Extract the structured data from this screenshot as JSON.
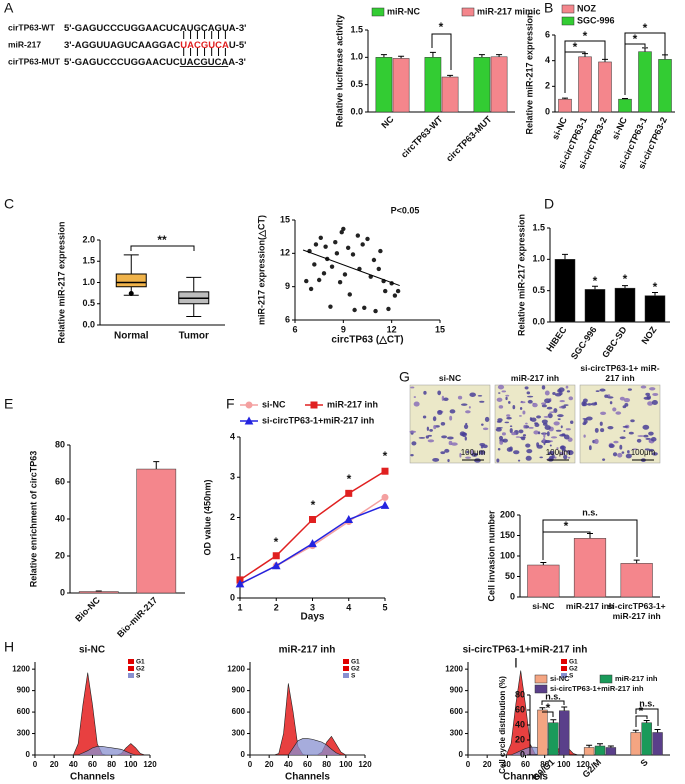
{
  "panels": [
    "A",
    "B",
    "C",
    "D",
    "E",
    "F",
    "G",
    "H",
    "I"
  ],
  "sequences": [
    {
      "name": "cirTP63-WT",
      "parts": [
        "5'-GAGUCCCUGGAACUCAUGCAGUA-3'"
      ]
    },
    {
      "name": "miR-217",
      "parts": [
        "3'-AGGUUAGUCAAGGAC",
        "UACGUCA",
        "U-5'"
      ]
    },
    {
      "name": "cirTP63-MUT",
      "parts": [
        "5'-GAGUCCCUGGAACUC",
        "UACGUCA",
        "A-3'"
      ]
    }
  ],
  "images": {
    "labels": [
      "si-NC",
      "miR-217 inh",
      "si-circTP63-1+ miR-217 inh"
    ],
    "scale_bar": "100μm"
  },
  "chart_data": [
    {
      "type": "bar",
      "categories": [
        "NC",
        "circTP63-WT",
        "circTP63-MUT"
      ],
      "series": [
        {
          "name": "miR-NC",
          "color": "#33cc33",
          "values": [
            1.0,
            1.0,
            1.0
          ],
          "errors": [
            0.05,
            0.09,
            0.05
          ]
        },
        {
          "name": "miR-217 mimic",
          "color": "#f4868c",
          "values": [
            0.98,
            0.64,
            1.01
          ],
          "errors": [
            0.04,
            0.03,
            0.04
          ]
        }
      ],
      "y_label": "Relative  luciferase activity",
      "ylim": [
        0,
        1.5
      ],
      "yticks": [
        {
          "value": 0,
          "label": "0.0"
        },
        0.5,
        {
          "value": 1,
          "label": "1.0"
        },
        1.5
      ],
      "annotations": [
        "*"
      ]
    },
    {
      "type": "bar",
      "categories": [
        "si-NC",
        "si-circTP63-1",
        "si-circTP63-2",
        "si-NC",
        "si-circTP63-1",
        "si-circTP63-2"
      ],
      "series": [
        {
          "name": "NOZ",
          "color": "#f4868c",
          "values": [
            1.0,
            4.3,
            3.9,
            null,
            null,
            null
          ],
          "errors": [
            0.08,
            0.25,
            0.2,
            null,
            null,
            null
          ]
        },
        {
          "name": "SGC-996",
          "color": "#33cc33",
          "values": [
            null,
            null,
            null,
            1.0,
            4.7,
            4.1
          ],
          "errors": [
            null,
            null,
            null,
            0.05,
            0.3,
            0.35
          ]
        }
      ],
      "y_label": "Relative miR-217 expression",
      "ylim": [
        0,
        6
      ],
      "yticks": [
        0,
        2,
        4,
        6
      ],
      "annotations": [
        "*",
        "*",
        "*",
        "*"
      ]
    },
    {
      "type": "box",
      "categories": [
        "Normal",
        "Tumor"
      ],
      "colors": [
        "#f0b34a",
        "#bdbdbd"
      ],
      "boxes": [
        {
          "min": 0.7,
          "q1": 0.9,
          "median": 1.0,
          "q3": 1.2,
          "max": 1.65,
          "outliers": [
            0.74
          ]
        },
        {
          "min": 0.2,
          "q1": 0.5,
          "median": 0.63,
          "q3": 0.78,
          "max": 1.12
        }
      ],
      "y_label": "Relative miR-217 expression",
      "ylim": [
        0,
        2
      ],
      "yticks": [
        {
          "value": 0,
          "label": "0.0"
        },
        0.5,
        {
          "value": 1,
          "label": "1.0"
        },
        1.5,
        {
          "value": 2,
          "label": "2.0"
        }
      ],
      "annotations": [
        "**"
      ]
    },
    {
      "type": "scatter",
      "x": [
        6.7,
        6.9,
        7.0,
        7.2,
        7.3,
        7.5,
        7.6,
        7.8,
        7.9,
        8.0,
        8.2,
        8.3,
        8.5,
        8.6,
        8.8,
        8.9,
        9.0,
        9.1,
        9.3,
        9.4,
        9.6,
        9.7,
        9.9,
        10.0,
        10.2,
        10.3,
        10.5,
        10.7,
        10.9,
        11.0,
        11.2,
        11.3,
        11.5,
        11.6,
        11.8,
        12.0,
        12.2,
        12.4
      ],
      "y": [
        9.5,
        12.2,
        8.8,
        11.0,
        12.8,
        9.6,
        13.4,
        10.2,
        12.6,
        11.5,
        7.2,
        10.8,
        13.0,
        12.0,
        9.4,
        13.9,
        14.2,
        10.1,
        12.5,
        8.3,
        11.9,
        6.9,
        13.6,
        10.6,
        12.8,
        7.1,
        13.3,
        9.9,
        11.4,
        6.8,
        10.6,
        12.2,
        9.5,
        8.6,
        7.0,
        9.3,
        8.2,
        8.6
      ],
      "color": "#222222",
      "trendline": {
        "x": [
          6.5,
          12.5
        ],
        "y": [
          12.3,
          9.1
        ]
      },
      "x_label": "circTP63 (△CT)",
      "y_label": "miR-217 expression(△CT)",
      "xlim": [
        6,
        15
      ],
      "xticks": [
        6,
        9,
        12,
        15
      ],
      "ylim": [
        6,
        15
      ],
      "yticks": [
        6,
        9,
        12,
        15
      ],
      "annotations": [
        "P<0.05"
      ]
    },
    {
      "type": "bar",
      "categories": [
        "HIBEC",
        "SGC-996",
        "GBC-SD",
        "NOZ"
      ],
      "color": "#000000",
      "values": [
        1.0,
        0.52,
        0.54,
        0.42
      ],
      "errors": [
        0.08,
        0.05,
        0.04,
        0.05
      ],
      "y_label": "Relative miR-217 expression",
      "ylim": [
        0,
        1.5
      ],
      "yticks": [
        {
          "value": 0,
          "label": "0.0"
        },
        0.5,
        {
          "value": 1,
          "label": "1.0"
        },
        1.5
      ],
      "annotations": [
        "*",
        "*",
        "*"
      ]
    },
    {
      "type": "bar",
      "categories": [
        "Bio-NC",
        "Bio-miR-217"
      ],
      "color": "#f4868c",
      "values": [
        0.8,
        67
      ],
      "errors": [
        0.3,
        4
      ],
      "y_label": "Relative enrichment of circTP63",
      "ylim": [
        0,
        80
      ],
      "yticks": [
        0,
        20,
        40,
        60,
        80
      ]
    },
    {
      "type": "line",
      "x": [
        1,
        2,
        3,
        4,
        5
      ],
      "series": [
        {
          "name": "si-NC",
          "color": "#f4a0a0",
          "values": [
            0.35,
            0.8,
            1.3,
            1.9,
            2.5
          ]
        },
        {
          "name": "miR-217 inh",
          "color": "#e02020",
          "values": [
            0.45,
            1.05,
            1.95,
            2.6,
            3.15
          ]
        },
        {
          "name": "si-circTP63-1+miR-217 inh",
          "color": "#2424e0",
          "values": [
            0.35,
            0.8,
            1.35,
            1.95,
            2.3
          ]
        }
      ],
      "x_label": "Days",
      "y_label": "OD value (450nm)",
      "xlim": [
        1,
        5
      ],
      "xticks": [
        1,
        2,
        3,
        4,
        5
      ],
      "ylim": [
        0,
        4
      ],
      "yticks": [
        0,
        1,
        2,
        3,
        4
      ],
      "annotations": [
        "*",
        "*",
        "*",
        "*"
      ]
    },
    {
      "type": "bar",
      "categories": [
        "si-NC",
        "miR-217 inh",
        "si-circTP63-1+ miR-217 inh"
      ],
      "color": "#f4868c",
      "values": [
        78,
        143,
        82
      ],
      "errors": [
        6,
        12,
        8
      ],
      "y_label": "Cell invasion number",
      "ylim": [
        0,
        200
      ],
      "yticks": [
        0,
        50,
        100,
        150,
        200
      ],
      "annotations": [
        "*",
        "n.s."
      ]
    },
    {
      "type": "area",
      "title": "si-NC",
      "x": [
        0,
        5,
        10,
        15,
        20,
        25,
        30,
        35,
        40,
        45,
        50,
        55,
        60,
        65,
        70,
        75,
        80,
        85,
        90,
        95,
        100,
        105,
        110,
        115,
        120
      ],
      "series": [
        {
          "name": "G1",
          "color": "#e00000",
          "values": [
            0,
            0,
            0,
            0,
            0,
            0,
            0,
            0,
            0,
            155,
            700,
            1150,
            700,
            155,
            15,
            0,
            0,
            0,
            0,
            0,
            0,
            0,
            0,
            0,
            0
          ]
        },
        {
          "name": "G2",
          "color": "#e00000",
          "values": [
            0,
            0,
            0,
            0,
            0,
            0,
            0,
            0,
            0,
            0,
            0,
            0,
            0,
            0,
            0,
            0,
            0,
            0,
            20,
            100,
            160,
            100,
            20,
            0,
            0
          ]
        },
        {
          "name": "S",
          "color": "#8890d0",
          "values": [
            0,
            0,
            0,
            0,
            0,
            0,
            0,
            0,
            0,
            0,
            30,
            60,
            100,
            120,
            120,
            110,
            100,
            90,
            80,
            50,
            20,
            0,
            0,
            0,
            0
          ]
        }
      ],
      "x_label": "Channels",
      "xlim": [
        0,
        120
      ],
      "xticks": [
        0,
        20,
        40,
        60,
        80,
        100,
        120
      ],
      "ylim": [
        0,
        1300
      ],
      "yticks": [
        0,
        300,
        600,
        900,
        1200
      ]
    },
    {
      "type": "area",
      "title": "miR-217 inh",
      "x": [
        0,
        5,
        10,
        15,
        20,
        25,
        30,
        35,
        40,
        45,
        50,
        55,
        60,
        65,
        70,
        75,
        80,
        85,
        90,
        95,
        100,
        105,
        110,
        115,
        120
      ],
      "series": [
        {
          "name": "G1",
          "color": "#e00000",
          "values": [
            0,
            0,
            0,
            0,
            0,
            0,
            20,
            300,
            1000,
            600,
            120,
            10,
            0,
            0,
            0,
            0,
            0,
            0,
            0,
            0,
            0,
            0,
            0,
            0,
            0
          ]
        },
        {
          "name": "G2",
          "color": "#e00000",
          "values": [
            0,
            0,
            0,
            0,
            0,
            0,
            0,
            0,
            0,
            0,
            0,
            0,
            0,
            0,
            0,
            40,
            180,
            260,
            150,
            40,
            0,
            0,
            0,
            0,
            0
          ]
        },
        {
          "name": "S",
          "color": "#8890d0",
          "values": [
            0,
            0,
            0,
            0,
            0,
            0,
            0,
            0,
            0,
            100,
            200,
            230,
            230,
            220,
            200,
            180,
            140,
            80,
            30,
            0,
            0,
            0,
            0,
            0,
            0
          ]
        }
      ],
      "x_label": "Channels",
      "xlim": [
        0,
        120
      ],
      "xticks": [
        0,
        20,
        40,
        60,
        80,
        100,
        120
      ],
      "ylim": [
        0,
        1300
      ],
      "yticks": [
        0,
        300,
        600,
        900,
        1200
      ]
    },
    {
      "type": "area",
      "title": "si-circTP63-1+miR-217 inh",
      "x": [
        0,
        5,
        10,
        15,
        20,
        25,
        30,
        35,
        40,
        45,
        50,
        55,
        60,
        65,
        70,
        75,
        80,
        85,
        90,
        95,
        100,
        105,
        110,
        115,
        120
      ],
      "series": [
        {
          "name": "G1",
          "color": "#e00000",
          "values": [
            0,
            0,
            0,
            0,
            0,
            0,
            0,
            0,
            0,
            160,
            720,
            1180,
            700,
            150,
            15,
            0,
            0,
            0,
            0,
            0,
            0,
            0,
            0,
            0,
            0
          ]
        },
        {
          "name": "G2",
          "color": "#e00000",
          "values": [
            0,
            0,
            0,
            0,
            0,
            0,
            0,
            0,
            0,
            0,
            0,
            0,
            0,
            0,
            0,
            0,
            0,
            0,
            20,
            90,
            140,
            90,
            20,
            0,
            0
          ]
        },
        {
          "name": "S",
          "color": "#8890d0",
          "values": [
            0,
            0,
            0,
            0,
            0,
            0,
            0,
            0,
            0,
            0,
            30,
            60,
            90,
            110,
            110,
            100,
            90,
            80,
            60,
            40,
            20,
            0,
            0,
            0,
            0
          ]
        }
      ],
      "x_label": "Channels",
      "xlim": [
        0,
        120
      ],
      "xticks": [
        0,
        20,
        40,
        60,
        80,
        100,
        120
      ],
      "ylim": [
        0,
        1300
      ],
      "yticks": [
        0,
        300,
        600,
        900,
        1200
      ]
    },
    {
      "type": "bar",
      "categories": [
        "G0/G1",
        "G2/M",
        "S"
      ],
      "series": [
        {
          "name": "si-NC",
          "color": "#f4a582",
          "values": [
            60,
            10,
            30
          ],
          "errors": [
            3,
            3,
            3
          ]
        },
        {
          "name": "miR-217 inh",
          "color": "#1a9a5a",
          "values": [
            43,
            12,
            43
          ],
          "errors": [
            4,
            3,
            3
          ]
        },
        {
          "name": "si-circTP63-1+miR-217 inh",
          "color": "#5a3f8a",
          "values": [
            59,
            10,
            30
          ],
          "errors": [
            5,
            2,
            4
          ]
        }
      ],
      "y_label": "Cell cycle distribution (%)",
      "ylim": [
        0,
        80
      ],
      "yticks": [
        0,
        20,
        40,
        60,
        80
      ],
      "annotations": [
        "*",
        "n.s.",
        "*",
        "n.s."
      ]
    }
  ]
}
